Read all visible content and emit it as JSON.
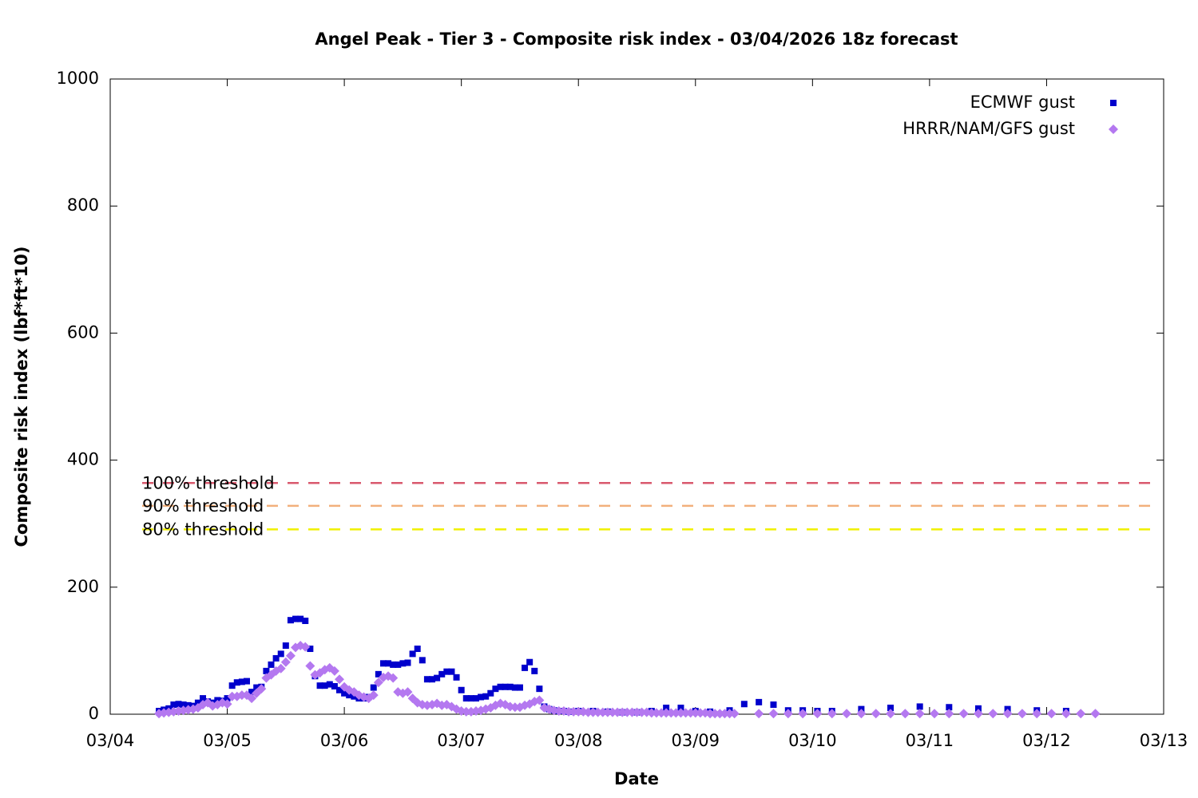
{
  "chart_data": {
    "type": "scatter",
    "title": "Angel Peak - Tier 3 - Composite risk index - 03/04/2026 18z forecast",
    "x_label": "Date",
    "y_label": "Composite risk index (lbf*ft*10)",
    "xlim": [
      0,
      216
    ],
    "xticks": [
      {
        "value": 0,
        "label": "03/04"
      },
      {
        "value": 24,
        "label": "03/05"
      },
      {
        "value": 48,
        "label": "03/06"
      },
      {
        "value": 72,
        "label": "03/07"
      },
      {
        "value": 96,
        "label": "03/08"
      },
      {
        "value": 120,
        "label": "03/09"
      },
      {
        "value": 144,
        "label": "03/10"
      },
      {
        "value": 168,
        "label": "03/11"
      },
      {
        "value": 192,
        "label": "03/12"
      },
      {
        "value": 216,
        "label": "03/13"
      }
    ],
    "ylim": [
      0,
      1000
    ],
    "yticks": [
      0,
      200,
      400,
      600,
      800,
      1000
    ],
    "grid": false,
    "legend": "top-right",
    "series": [
      {
        "name": "ECMWF gust",
        "color": "#0000cc",
        "marker": "square",
        "x": [
          10,
          11,
          12,
          13,
          14,
          15,
          16,
          17,
          18,
          19,
          20,
          21,
          22,
          23,
          24,
          25,
          26,
          27,
          28,
          29,
          30,
          31,
          32,
          33,
          34,
          35,
          36,
          37,
          38,
          39,
          40,
          41,
          42,
          43,
          44,
          45,
          46,
          47,
          48,
          49,
          50,
          51,
          52,
          53,
          54,
          55,
          56,
          57,
          58,
          59,
          60,
          61,
          62,
          63,
          64,
          65,
          66,
          67,
          68,
          69,
          70,
          71,
          72,
          73,
          74,
          75,
          76,
          77,
          78,
          79,
          80,
          81,
          82,
          83,
          84,
          85,
          86,
          87,
          88,
          89,
          90,
          91,
          92,
          93,
          94,
          96,
          99,
          102,
          105,
          108,
          111,
          114,
          117,
          120,
          123,
          127,
          130,
          133,
          136,
          139,
          142,
          145,
          148,
          154,
          160,
          166,
          172,
          178,
          184,
          190,
          196
        ],
        "values": [
          5,
          7,
          9,
          15,
          16,
          15,
          14,
          13,
          18,
          25,
          20,
          18,
          22,
          21,
          25,
          45,
          50,
          51,
          52,
          35,
          42,
          43,
          68,
          78,
          88,
          95,
          108,
          148,
          150,
          150,
          147,
          103,
          60,
          45,
          45,
          47,
          44,
          38,
          33,
          30,
          28,
          25,
          25,
          27,
          42,
          63,
          80,
          80,
          78,
          78,
          80,
          81,
          95,
          103,
          85,
          55,
          55,
          57,
          63,
          67,
          67,
          58,
          38,
          25,
          25,
          25,
          27,
          28,
          33,
          40,
          43,
          43,
          43,
          42,
          42,
          73,
          82,
          68,
          40,
          12,
          8,
          6,
          5,
          5,
          4,
          5,
          5,
          4,
          3,
          3,
          5,
          10,
          10,
          5,
          4,
          6,
          16,
          19,
          15,
          6,
          6,
          5,
          5,
          8,
          10,
          12,
          11,
          9,
          8,
          6,
          5
        ]
      },
      {
        "name": "HRRR/NAM/GFS gust",
        "color": "#b478f0",
        "marker": "diamond",
        "x": [
          10,
          11,
          12,
          13,
          14,
          15,
          16,
          17,
          18,
          19,
          20,
          21,
          22,
          23,
          24,
          25,
          26,
          27,
          28,
          29,
          30,
          31,
          32,
          33,
          34,
          35,
          36,
          37,
          38,
          39,
          40,
          41,
          42,
          43,
          44,
          45,
          46,
          47,
          48,
          49,
          50,
          51,
          52,
          53,
          54,
          55,
          56,
          57,
          58,
          59,
          60,
          61,
          62,
          63,
          64,
          65,
          66,
          67,
          68,
          69,
          70,
          71,
          72,
          73,
          74,
          75,
          76,
          77,
          78,
          79,
          80,
          81,
          82,
          83,
          84,
          85,
          86,
          87,
          88,
          89,
          90,
          91,
          92,
          93,
          94,
          95,
          96,
          97,
          98,
          99,
          100,
          101,
          102,
          103,
          104,
          105,
          106,
          107,
          108,
          109,
          110,
          111,
          112,
          113,
          114,
          115,
          116,
          117,
          118,
          119,
          120,
          121,
          122,
          123,
          124,
          125,
          126,
          127,
          128,
          133,
          136,
          139,
          142,
          145,
          148,
          151,
          154,
          157,
          160,
          163,
          166,
          169,
          172,
          175,
          178,
          181,
          184,
          187,
          190,
          193,
          196,
          199,
          202
        ],
        "values": [
          1,
          2,
          3,
          4,
          5,
          6,
          7,
          8,
          10,
          15,
          18,
          13,
          15,
          18,
          16,
          28,
          28,
          30,
          30,
          25,
          33,
          40,
          57,
          62,
          68,
          72,
          82,
          92,
          105,
          108,
          106,
          76,
          62,
          65,
          70,
          73,
          68,
          55,
          43,
          38,
          35,
          30,
          27,
          25,
          30,
          50,
          58,
          60,
          57,
          35,
          33,
          35,
          25,
          18,
          15,
          14,
          15,
          17,
          14,
          15,
          12,
          8,
          5,
          4,
          4,
          5,
          6,
          8,
          10,
          14,
          17,
          15,
          12,
          11,
          11,
          14,
          16,
          20,
          22,
          10,
          8,
          6,
          5,
          5,
          4,
          4,
          4,
          4,
          3,
          3,
          3,
          3,
          3,
          3,
          3,
          3,
          3,
          3,
          3,
          3,
          3,
          2,
          2,
          2,
          2,
          2,
          2,
          2,
          2,
          2,
          2,
          2,
          2,
          1,
          1,
          1,
          1,
          1,
          1,
          1,
          1,
          1,
          1,
          1,
          1,
          1,
          1,
          1,
          1,
          1,
          1,
          1,
          1,
          1,
          1,
          1,
          1,
          1,
          1,
          1,
          1,
          1,
          1
        ]
      }
    ],
    "thresholds": [
      {
        "label": "100% threshold",
        "value": 364,
        "color": "#d9596e"
      },
      {
        "label": "90% threshold",
        "value": 328,
        "color": "#f2b07c"
      },
      {
        "label": "80% threshold",
        "value": 291,
        "color": "#f0f000"
      }
    ]
  }
}
